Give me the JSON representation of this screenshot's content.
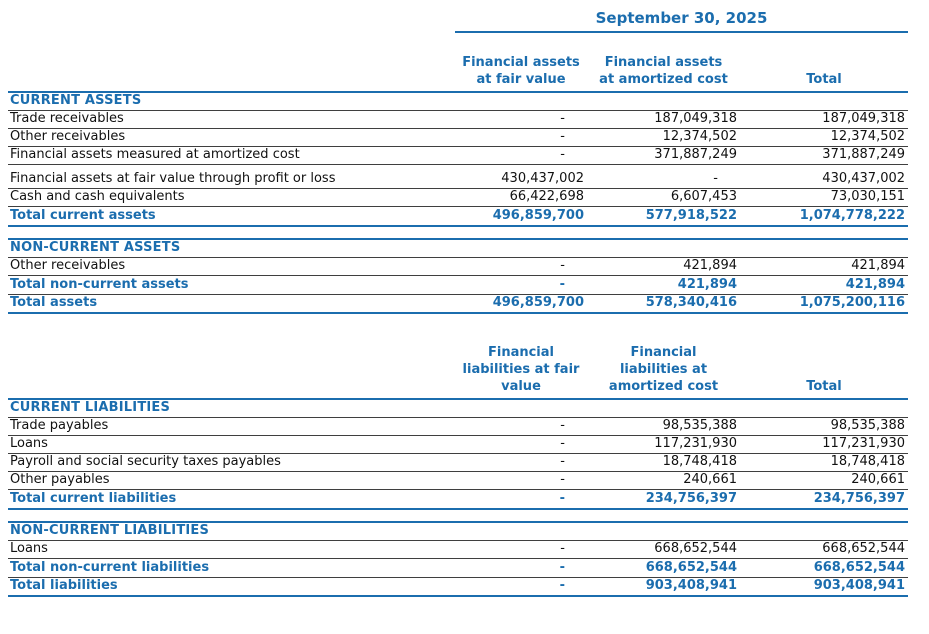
{
  "date_header": "September 30, 2025",
  "colors": {
    "accent_blue": "#1B6DAE",
    "row_line": "#3f3f3f"
  },
  "tables": [
    {
      "id": "assets",
      "show_date_header": true,
      "column_headers": [
        "Financial assets\nat fair value",
        "Financial assets\nat amortized cost",
        "Total"
      ],
      "sections": [
        {
          "title": "CURRENT ASSETS",
          "rows": [
            {
              "label": "Trade receivables",
              "values": [
                "-",
                "187,049,318",
                "187,049,318"
              ]
            },
            {
              "label": "Other receivables",
              "values": [
                "-",
                "12,374,502",
                "12,374,502"
              ]
            },
            {
              "label": "Financial assets measured at amortized cost",
              "values": [
                "-",
                "371,887,249",
                "371,887,249"
              ]
            },
            {
              "label": "Financial assets at fair value through profit or loss",
              "values": [
                "430,437,002",
                "-",
                "430,437,002"
              ],
              "gap_before": true
            },
            {
              "label": "Cash and cash equivalents",
              "values": [
                "66,422,698",
                "6,607,453",
                "73,030,151"
              ]
            }
          ],
          "total_rows": [
            {
              "label": "Total current assets",
              "values": [
                "496,859,700",
                "577,918,522",
                "1,074,778,222"
              ],
              "underline": "blue"
            }
          ]
        },
        {
          "title": "NON-CURRENT ASSETS",
          "gap_before": true,
          "rows": [
            {
              "label": "Other receivables",
              "values": [
                "-",
                "421,894",
                "421,894"
              ]
            }
          ],
          "total_rows": [
            {
              "label": "Total non-current assets",
              "values": [
                "-",
                "421,894",
                "421,894"
              ],
              "underline": "dark"
            },
            {
              "label": "Total assets",
              "values": [
                "496,859,700",
                "578,340,416",
                "1,075,200,116"
              ],
              "underline": "blue"
            }
          ]
        }
      ]
    },
    {
      "id": "liabilities",
      "show_date_header": false,
      "column_headers": [
        "Financial\nliabilities at fair\nvalue",
        "Financial\nliabilities at\namortized cost",
        "Total"
      ],
      "sections": [
        {
          "title": "CURRENT LIABILITIES",
          "rows": [
            {
              "label": "Trade payables",
              "values": [
                "-",
                "98,535,388",
                "98,535,388"
              ]
            },
            {
              "label": "Loans",
              "values": [
                "-",
                "117,231,930",
                "117,231,930"
              ]
            },
            {
              "label": "Payroll and social security taxes payables",
              "values": [
                "-",
                "18,748,418",
                "18,748,418"
              ]
            },
            {
              "label": "Other payables",
              "values": [
                "-",
                "240,661",
                "240,661"
              ]
            }
          ],
          "total_rows": [
            {
              "label": "Total current liabilities",
              "values": [
                "-",
                "234,756,397",
                "234,756,397"
              ],
              "underline": "blue"
            }
          ]
        },
        {
          "title": "NON-CURRENT LIABILITIES",
          "gap_before": true,
          "rows": [
            {
              "label": "Loans",
              "values": [
                "-",
                "668,652,544",
                "668,652,544"
              ]
            }
          ],
          "total_rows": [
            {
              "label": "Total non-current liabilities",
              "values": [
                "-",
                "668,652,544",
                "668,652,544"
              ],
              "underline": "dark"
            },
            {
              "label": "Total liabilities",
              "values": [
                "-",
                "903,408,941",
                "903,408,941"
              ],
              "underline": "blue"
            }
          ]
        }
      ]
    }
  ]
}
